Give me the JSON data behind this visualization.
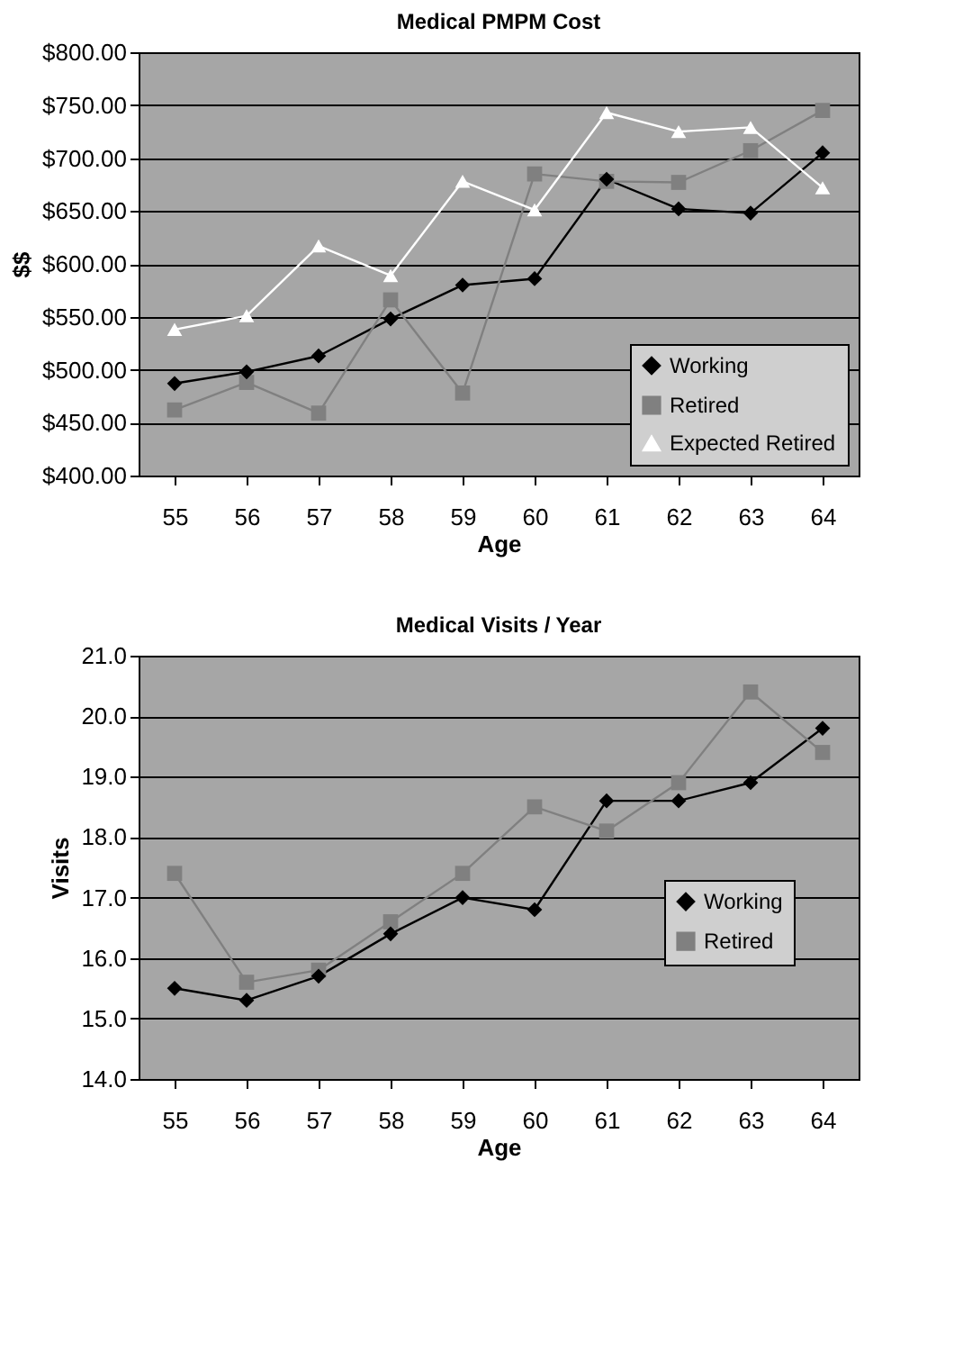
{
  "chart_data": [
    {
      "type": "line",
      "title": "Medical PMPM Cost",
      "xlabel": "Age",
      "ylabel": "$$",
      "categories": [
        "55",
        "56",
        "57",
        "58",
        "59",
        "60",
        "61",
        "62",
        "63",
        "64"
      ],
      "series": [
        {
          "name": "Working",
          "color": "#000000",
          "marker": "diamond",
          "values": [
            487,
            498,
            513,
            548,
            580,
            586,
            680,
            652,
            648,
            705
          ]
        },
        {
          "name": "Retired",
          "color": "#808080",
          "marker": "square",
          "values": [
            462,
            488,
            459,
            566,
            478,
            685,
            678,
            677,
            707,
            745
          ]
        },
        {
          "name": "Expected Retired",
          "color": "#ffffff",
          "marker": "triangle",
          "values": [
            538,
            551,
            617,
            589,
            678,
            651,
            743,
            725,
            729,
            672
          ]
        }
      ],
      "ylim": [
        400,
        800
      ],
      "yticks": [
        {
          "value": 400,
          "label": "$400.00"
        },
        {
          "value": 450,
          "label": "$450.00"
        },
        {
          "value": 500,
          "label": "$500.00"
        },
        {
          "value": 550,
          "label": "$550.00"
        },
        {
          "value": 600,
          "label": "$600.00"
        },
        {
          "value": 650,
          "label": "$650.00"
        },
        {
          "value": 700,
          "label": "$700.00"
        },
        {
          "value": 750,
          "label": "$750.00"
        },
        {
          "value": 800,
          "label": "$800.00"
        }
      ],
      "grid": "y",
      "legend": "bottom right",
      "line_style": "solid"
    },
    {
      "type": "line",
      "title": "Medical Visits / Year",
      "xlabel": "Age",
      "ylabel": "Visits",
      "categories": [
        "55",
        "56",
        "57",
        "58",
        "59",
        "60",
        "61",
        "62",
        "63",
        "64"
      ],
      "series": [
        {
          "name": "Working",
          "color": "#000000",
          "marker": "diamond",
          "values": [
            15.5,
            15.3,
            15.7,
            16.4,
            17.0,
            16.8,
            18.6,
            18.6,
            18.9,
            19.8
          ]
        },
        {
          "name": "Retired",
          "color": "#808080",
          "marker": "square",
          "values": [
            17.4,
            15.6,
            15.8,
            16.6,
            17.4,
            18.5,
            18.1,
            18.9,
            20.4,
            19.4
          ]
        }
      ],
      "ylim": [
        14,
        21
      ],
      "yticks": [
        {
          "value": 14,
          "label": "14.0"
        },
        {
          "value": 15,
          "label": "15.0"
        },
        {
          "value": 16,
          "label": "16.0"
        },
        {
          "value": 17,
          "label": "17.0"
        },
        {
          "value": 18,
          "label": "18.0"
        },
        {
          "value": 19,
          "label": "19.0"
        },
        {
          "value": 20,
          "label": "20.0"
        },
        {
          "value": 21,
          "label": "21.0"
        }
      ],
      "grid": "y",
      "legend": "right",
      "line_style": "solid"
    }
  ]
}
